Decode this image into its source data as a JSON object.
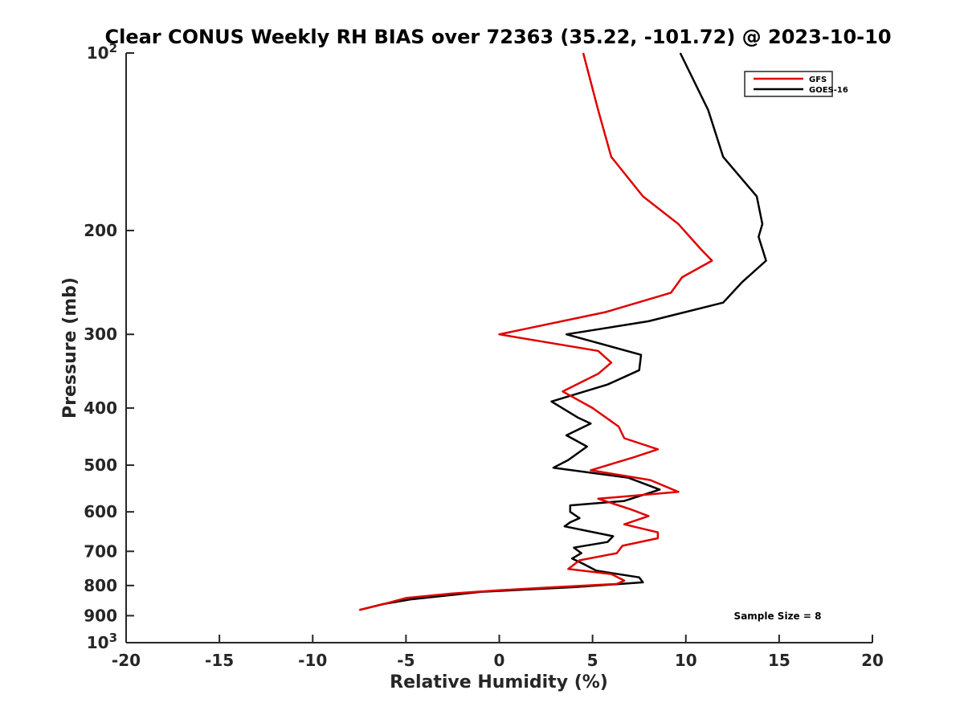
{
  "chart_data": {
    "type": "line",
    "title": "Clear CONUS Weekly RH BIAS over 72363 (35.22, -101.72) @ 2023-10-10",
    "xlabel": "Relative Humidity (%)",
    "ylabel": "Pressure (mb)",
    "xlim": [
      -20,
      20
    ],
    "ylim": [
      100,
      1000
    ],
    "y_scale": "log",
    "y_reversed": true,
    "x_ticks": [
      "-20",
      "-15",
      "-10",
      "-5",
      "0",
      "5",
      "10",
      "15",
      "20"
    ],
    "y_ticks": [
      {
        "value": 100,
        "base": "10",
        "exp": "2"
      },
      {
        "value": 200,
        "label": "200"
      },
      {
        "value": 300,
        "label": "300"
      },
      {
        "value": 400,
        "label": "400"
      },
      {
        "value": 500,
        "label": "500"
      },
      {
        "value": 600,
        "label": "600"
      },
      {
        "value": 700,
        "label": "700"
      },
      {
        "value": 800,
        "label": "800"
      },
      {
        "value": 900,
        "label": "900"
      },
      {
        "value": 1000,
        "base": "10",
        "exp": "3"
      }
    ],
    "grid": false,
    "legend_position": "top-right",
    "annotation": "Sample Size = 8",
    "series": [
      {
        "name": "GFS",
        "color": "#e00000",
        "points": [
          [
            4.5,
            100
          ],
          [
            5.3,
            125
          ],
          [
            6.0,
            150
          ],
          [
            7.7,
            175
          ],
          [
            9.6,
            195
          ],
          [
            10.8,
            215
          ],
          [
            11.4,
            225
          ],
          [
            9.8,
            240
          ],
          [
            9.2,
            255
          ],
          [
            5.7,
            275
          ],
          [
            0.0,
            300
          ],
          [
            5.3,
            320
          ],
          [
            6.0,
            335
          ],
          [
            5.3,
            350
          ],
          [
            3.4,
            375
          ],
          [
            5.0,
            400
          ],
          [
            6.4,
            430
          ],
          [
            6.7,
            450
          ],
          [
            8.5,
            470
          ],
          [
            7.2,
            485
          ],
          [
            4.9,
            510
          ],
          [
            8.1,
            530
          ],
          [
            9.6,
            555
          ],
          [
            5.3,
            570
          ],
          [
            7.1,
            595
          ],
          [
            8.0,
            610
          ],
          [
            6.7,
            630
          ],
          [
            8.5,
            650
          ],
          [
            8.5,
            665
          ],
          [
            6.6,
            685
          ],
          [
            6.3,
            705
          ],
          [
            4.3,
            725
          ],
          [
            3.7,
            750
          ],
          [
            6.0,
            765
          ],
          [
            6.7,
            785
          ],
          [
            6.3,
            795
          ],
          [
            3.0,
            805
          ],
          [
            0.0,
            815
          ],
          [
            -2.5,
            825
          ],
          [
            -5.0,
            840
          ],
          [
            -6.2,
            860
          ],
          [
            -7.5,
            880
          ]
        ]
      },
      {
        "name": "GOES-16",
        "color": "#000000",
        "points": [
          [
            9.7,
            100
          ],
          [
            11.2,
            125
          ],
          [
            12.0,
            150
          ],
          [
            13.8,
            175
          ],
          [
            14.1,
            195
          ],
          [
            13.9,
            205
          ],
          [
            14.3,
            225
          ],
          [
            13.0,
            245
          ],
          [
            12.0,
            265
          ],
          [
            8.0,
            285
          ],
          [
            3.6,
            300
          ],
          [
            7.6,
            325
          ],
          [
            7.5,
            345
          ],
          [
            5.8,
            365
          ],
          [
            2.8,
            390
          ],
          [
            4.2,
            415
          ],
          [
            4.9,
            425
          ],
          [
            3.6,
            445
          ],
          [
            4.7,
            465
          ],
          [
            3.7,
            490
          ],
          [
            2.9,
            505
          ],
          [
            6.9,
            525
          ],
          [
            8.6,
            550
          ],
          [
            6.7,
            575
          ],
          [
            3.8,
            585
          ],
          [
            3.8,
            600
          ],
          [
            4.3,
            615
          ],
          [
            3.8,
            625
          ],
          [
            3.5,
            635
          ],
          [
            6.1,
            660
          ],
          [
            5.8,
            675
          ],
          [
            4.0,
            690
          ],
          [
            4.4,
            705
          ],
          [
            3.9,
            720
          ],
          [
            4.5,
            735
          ],
          [
            5.2,
            755
          ],
          [
            7.5,
            775
          ],
          [
            7.7,
            790
          ],
          [
            4.0,
            805
          ],
          [
            -1.0,
            820
          ],
          [
            -4.8,
            845
          ],
          [
            -6.2,
            860
          ],
          [
            -7.5,
            880
          ]
        ]
      }
    ]
  }
}
